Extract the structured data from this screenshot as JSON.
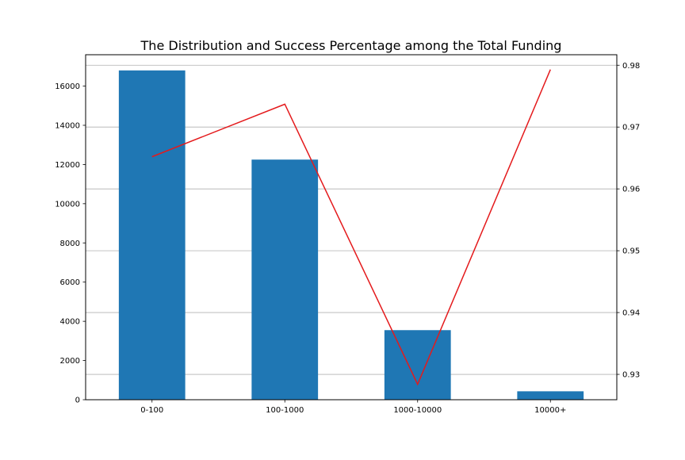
{
  "chart_data": {
    "type": "bar",
    "title": "The Distribution and Success Percentage among the Total Funding",
    "categories": [
      "0-100",
      "100-1000",
      "1000-10000",
      "10000+"
    ],
    "series": [
      {
        "type": "bar",
        "axis": "left",
        "values": [
          16800,
          12250,
          3550,
          430
        ]
      },
      {
        "type": "line",
        "axis": "right",
        "values": [
          0.9652,
          0.9737,
          0.9284,
          0.9793
        ]
      }
    ],
    "y_left": {
      "ylim": [
        0,
        17600
      ],
      "ticks": [
        0,
        2000,
        4000,
        6000,
        8000,
        10000,
        12000,
        14000,
        16000
      ],
      "tick_labels": [
        "0",
        "2000",
        "4000",
        "6000",
        "8000",
        "10000",
        "12000",
        "14000",
        "16000"
      ]
    },
    "y_right": {
      "ylim": [
        0.9259,
        0.9817
      ],
      "ticks": [
        0.93,
        0.94,
        0.95,
        0.96,
        0.97,
        0.98
      ],
      "tick_labels": [
        "0.93",
        "0.94",
        "0.95",
        "0.96",
        "0.97",
        "0.98"
      ],
      "grid": true
    },
    "grid_axis": "right",
    "colors": {
      "bar": "#1f77b4",
      "line": "#e41a1c",
      "grid": "#b0b0b0"
    }
  }
}
